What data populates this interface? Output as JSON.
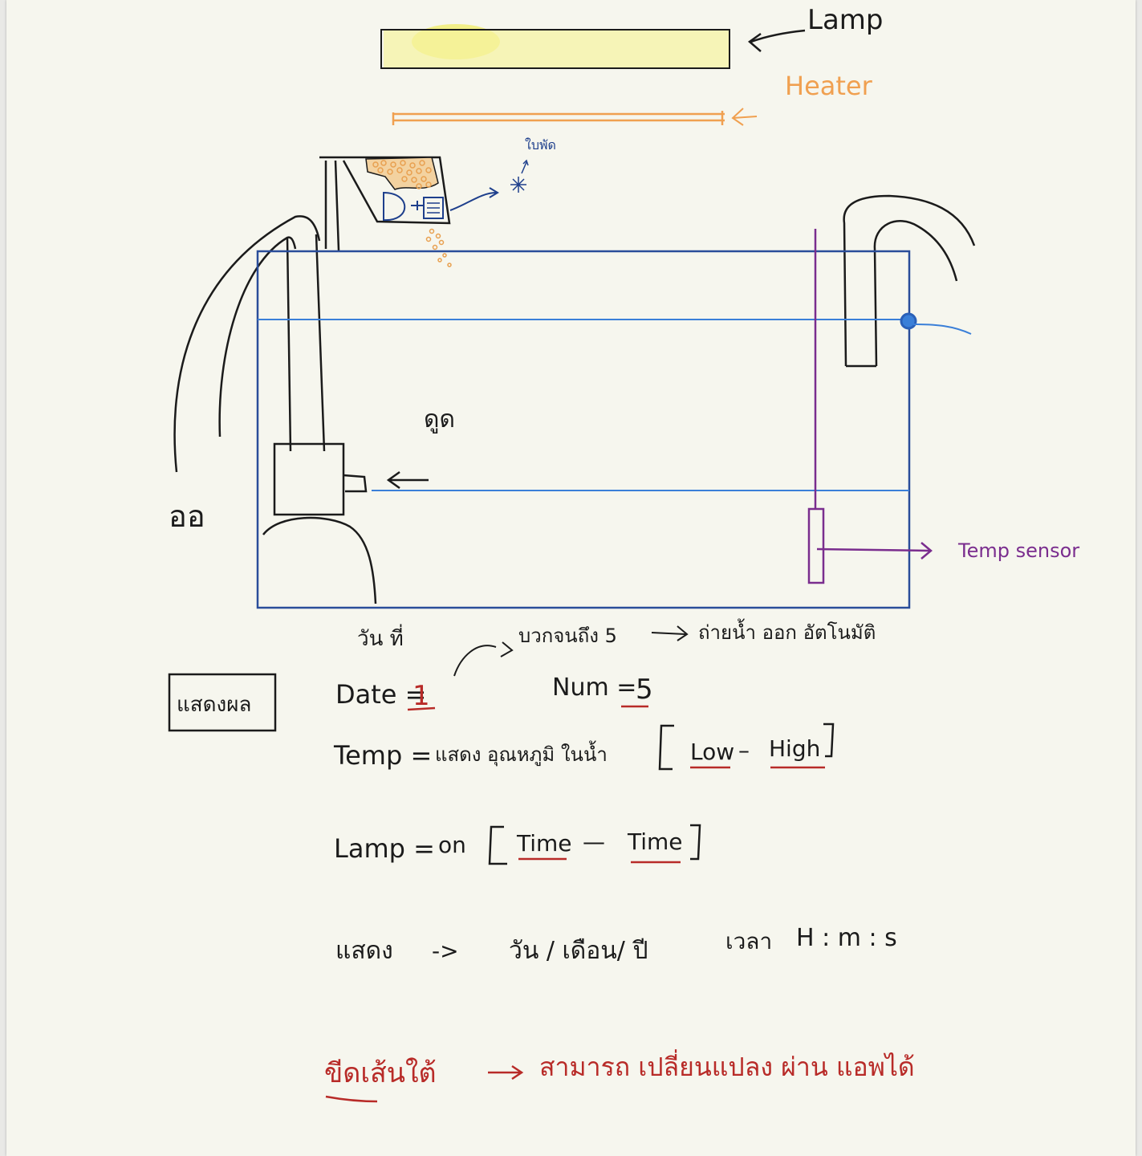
{
  "diagram": {
    "labels": {
      "lamp": "Lamp",
      "heater": "Heater",
      "feeder_label": "ใบพัด",
      "suction": "ดูด",
      "pump_outside": "ออ",
      "temp_sensor": "Temp sensor"
    }
  },
  "notes": {
    "day_label": "วัน ที่",
    "condition": "บวกจนถึง 5",
    "action": "ถ่ายน้ำ ออก อัตโนมัติ",
    "show_button": "แสดงผล",
    "date_label": "Date =",
    "date_value": "1",
    "num_label": "Num =",
    "num_value": "5",
    "temp_label": "Temp =",
    "temp_desc": "แสดง อุณหภูมิ ในน้ำ",
    "temp_low": "Low",
    "temp_dash": "–",
    "temp_high": "High",
    "lamp_label": "Lamp =",
    "lamp_on": "on",
    "lamp_time_start": "Time",
    "lamp_dash": "—",
    "lamp_time_end": "Time",
    "display_label": "แสดง",
    "display_arrow": "->",
    "display_date": "วัน / เดือน/ ปี",
    "display_time_label": "เวลา",
    "display_time_format": "H : m : s",
    "extra_label": "ขีดเส้นใต้",
    "extra_desc": "สามารถ เปลี่ยนแปลง ผ่าน แอพได้"
  },
  "colors": {
    "ink": "#1b1b1b",
    "tank": "#2a4d9a",
    "water": "#3a7fd8",
    "heater": "#f0a050",
    "lamp": "#f5f07a",
    "sensor": "#7a2d8e",
    "underline": "#b82b28",
    "feeder_blue": "#1e3f8c",
    "food": "#e8a050"
  }
}
